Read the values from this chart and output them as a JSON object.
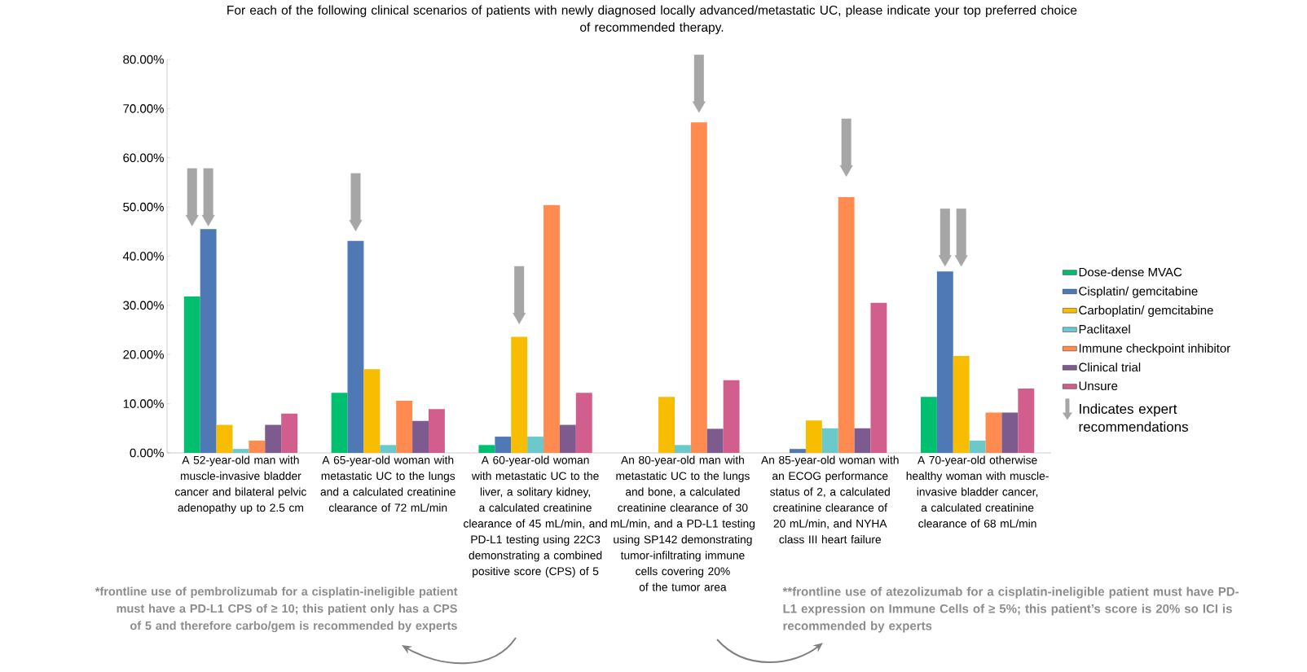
{
  "chart_data": {
    "type": "bar",
    "title": "For each of the following clinical scenarios of patients with newly diagnosed locally advanced/metastatic UC, please indicate your top preferred choice of recommended therapy.",
    "categories": [
      "A 52-year-old man with muscle-invasive bladder cancer and bilateral pelvic adenopathy up to 2.5 cm",
      "A 65-year-old woman with metastatic UC to the lungs and a calculated creatinine clearance of 72 mL/min",
      "A 60-year-old woman with metastatic UC to the liver, a solitary kidney, a calculated creatinine clearance of 45 mL/min, and PD-L1 testing using 22C3 demonstrating a combined positive score (CPS) of 5",
      "An 80-year-old man with metastatic UC to the lungs and bone, a calculated creatinine clearance of 30 mL/min, and a PD-L1 testing using SP142 demonstrating tumor-infiltrating immune cells covering 20% of the tumor area",
      "An 85-year-old woman with an ECOG performance status of 2, a calculated creatinine clearance of 20 mL/min, and NYHA class III heart failure",
      "A 70-year-old otherwise healthy woman with muscle-invasive bladder cancer, a calculated creatinine clearance of 68 mL/min"
    ],
    "series": [
      {
        "name": "Dose-dense MVAC",
        "color": "#00bf6f",
        "values": [
          31.8,
          12.2,
          1.6,
          0,
          0,
          11.4
        ]
      },
      {
        "name": "Cisplatin/ gemcitabine",
        "color": "#4f79b4",
        "values": [
          45.5,
          43.1,
          3.3,
          0,
          0.8,
          36.9
        ]
      },
      {
        "name": "Carboplatin/ gemcitabine",
        "color": "#f8bd00",
        "values": [
          5.7,
          17.0,
          23.6,
          11.4,
          6.6,
          19.7
        ]
      },
      {
        "name": "Paclitaxel",
        "color": "#6bc8cb",
        "values": [
          0.8,
          1.6,
          3.3,
          1.6,
          5.0,
          2.5
        ]
      },
      {
        "name": "Immune checkpoint inhibitor",
        "color": "#ff8b50",
        "values": [
          2.5,
          10.6,
          50.4,
          67.2,
          52.0,
          8.2
        ]
      },
      {
        "name": "Clinical trial",
        "color": "#7d5b8f",
        "values": [
          5.7,
          6.5,
          5.7,
          4.9,
          5.0,
          8.2
        ]
      },
      {
        "name": "Unsure",
        "color": "#d25e8e",
        "values": [
          8.0,
          8.9,
          12.2,
          14.8,
          30.5,
          13.1
        ]
      },
      {
        "name": "Indicates expert recommendations",
        "type": "scatter",
        "color": "#a6a6a6",
        "x": [
          "A 52-year-old man with muscle-invasive bladder cancer and bilateral pelvic adenopathy up to 2.5 cm",
          "A 52-year-old man with muscle-invasive bladder cancer and bilateral pelvic adenopathy up to 2.5 cm",
          "A 65-year-old woman with metastatic UC to the lungs and a calculated creatinine clearance of 72 mL/min",
          "A 60-year-old woman with metastatic UC to the liver, a solitary kidney, a calculated creatinine clearance of 45 mL/min, and PD-L1 testing using 22C3 demonstrating a combined positive score (CPS) of 5",
          "An 80-year-old man with metastatic UC to the lungs and bone, a calculated creatinine clearance of 30 mL/min, and a PD-L1 testing using SP142 demonstrating tumor-infiltrating immune cells covering 20% of the tumor area",
          "An 85-year-old woman with an ECOG performance status of 2, a calculated creatinine clearance of 20 mL/min, and NYHA class III heart failure",
          "A 70-year-old otherwise healthy woman with muscle-invasive bladder cancer, a calculated creatinine clearance of 68 mL/min",
          "A 70-year-old otherwise healthy woman with muscle-invasive bladder cancer, a calculated creatinine clearance of 68 mL/min"
        ],
        "values": [
          47.6,
          47.6,
          46.6,
          27.7,
          70.7,
          57.7,
          39.4,
          39.4
        ],
        "marker": "triangle"
      }
    ],
    "ylim": [
      0,
      80
    ],
    "yticks": [
      {
        "value": 0,
        "label": "0.00%"
      },
      {
        "value": 10,
        "label": "10.00%"
      },
      {
        "value": 20,
        "label": "20.00%"
      },
      {
        "value": 30,
        "label": "30.00%"
      },
      {
        "value": 40,
        "label": "40.00%"
      },
      {
        "value": 50,
        "label": "50.00%"
      },
      {
        "value": 60,
        "label": "60.00%"
      },
      {
        "value": 70,
        "label": "70.00%"
      },
      {
        "value": 80,
        "label": "80.00%"
      }
    ],
    "legend": "right",
    "annotations": [
      "*frontline use of pembrolizumab for a cisplatin-ineligible patient must have a PD-L1 CPS of  ≥ 10; this patient only has a CPS of 5 and therefore carbo/gem is recommended by experts",
      "**frontline use of atezolizumab for a cisplatin-ineligible patient must have PD-L1 expression on Immune Cells of ≥ 5%; this patient’s score is 20% so ICI is recommended by experts"
    ]
  }
}
